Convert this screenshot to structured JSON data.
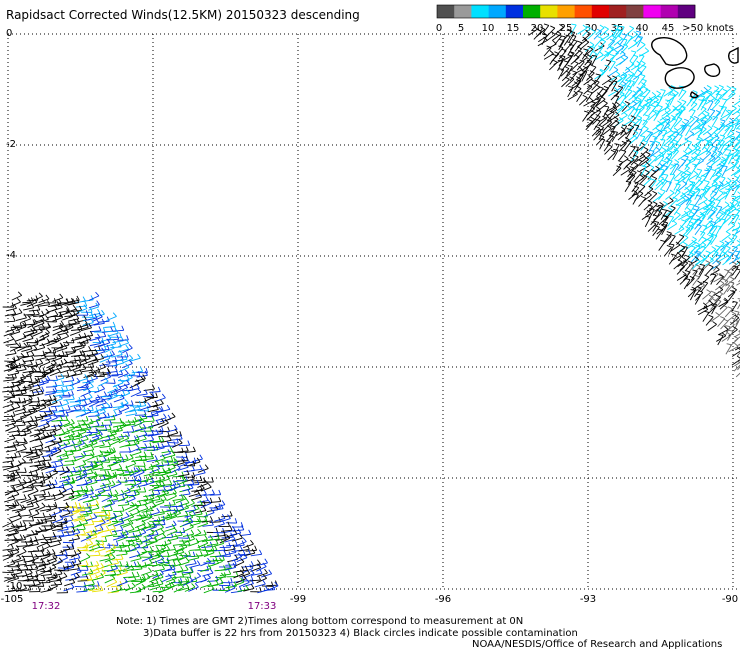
{
  "title": "Rapidsact Corrected Winds(12.5KM) 20150323 descending",
  "colorbar": {
    "labels": [
      "0",
      "5",
      "10",
      "15",
      "20",
      "25",
      "30",
      "35",
      "40",
      "45",
      ">50 knots"
    ],
    "colors": [
      "#505050",
      "#9a9a9a",
      "#00e0ff",
      "#00a8ff",
      "#0030e0",
      "#00b000",
      "#e8e000",
      "#ffa000",
      "#ff5000",
      "#e00000",
      "#a02020",
      "#804040",
      "#f000f0",
      "#b000b0",
      "#600080"
    ]
  },
  "axes": {
    "lon_ticks": [
      "-105",
      "-102",
      "-99",
      "-96",
      "-93",
      "-90"
    ],
    "lat_ticks": [
      "0",
      "-2",
      "-4",
      "-6",
      "-8",
      "-10"
    ]
  },
  "times": {
    "left": "17:32",
    "right": "17:33"
  },
  "notes": {
    "line1": "Note: 1) Times are GMT 2)Times along bottom correspond to measurement at 0N",
    "line2": "3)Data buffer is 22 hrs from 20150323 4) Black circles indicate possible contamination",
    "line3": "NOAA/NESDIS/Office of Research and Applications"
  }
}
